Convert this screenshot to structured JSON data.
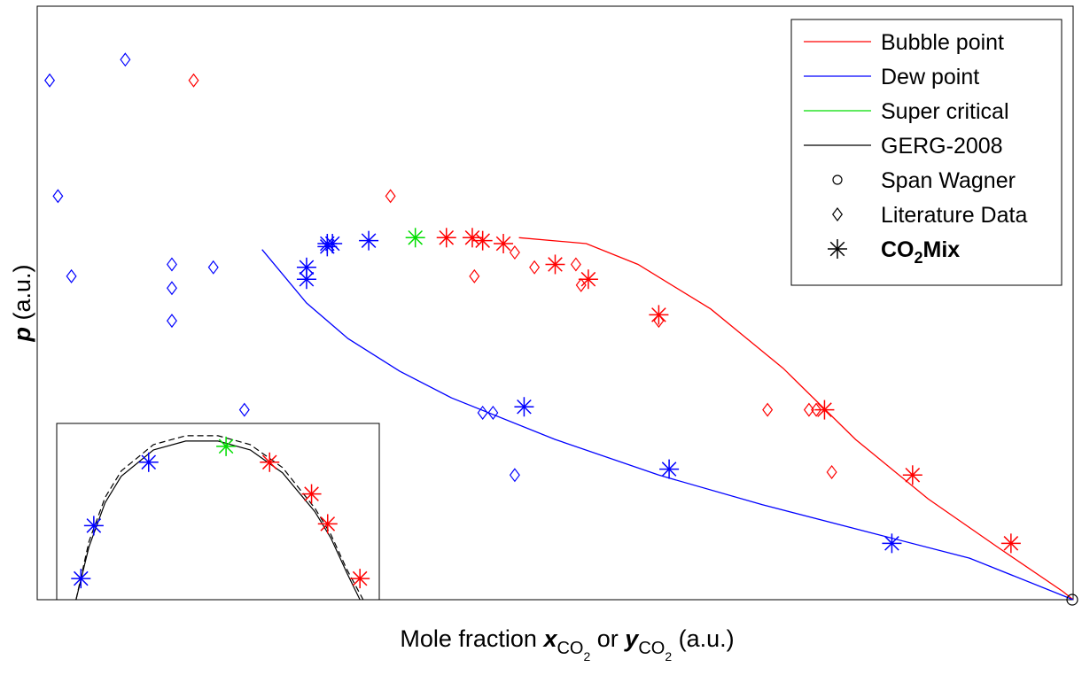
{
  "chart_data": {
    "type": "scatter",
    "title": "",
    "xlabel": {
      "prefix": "Mole fraction ",
      "x_symbol": "x",
      "or_text": " or ",
      "y_symbol": "y",
      "subscript": "CO",
      "sub_sub": "2",
      "unit": " (a.u.)"
    },
    "ylabel": {
      "symbol": "p",
      "unit": " (a.u.)"
    },
    "xlim": [
      0,
      1
    ],
    "ylim": [
      0,
      1
    ],
    "axis_ticks": "none",
    "grid": false,
    "legend": {
      "placement": "top-right",
      "entries": [
        {
          "label": "Bubble point",
          "marker": "line",
          "color": "#ff0000"
        },
        {
          "label": "Dew point",
          "marker": "line",
          "color": "#0000ff"
        },
        {
          "label": "Super critical",
          "marker": "line",
          "color": "#00dd00"
        },
        {
          "label": "GERG-2008",
          "marker": "line",
          "color": "#000000"
        },
        {
          "label": "Span Wagner",
          "marker": "circle",
          "color": "#000000"
        },
        {
          "label": "Literature Data",
          "marker": "diamond",
          "color": "#000000"
        },
        {
          "label": "CO",
          "label_sub": "2",
          "label_suffix": "Mix",
          "marker": "star",
          "color": "#000000",
          "bold": true
        }
      ]
    },
    "colors": {
      "bubble": "#ff0000",
      "dew": "#0000ff",
      "super": "#00dd00",
      "gerg": "#000000"
    },
    "series": [
      {
        "name": "Bubble point",
        "kind": "line",
        "color": "#ff0000",
        "x": [
          0.465,
          0.53,
          0.58,
          0.65,
          0.72,
          0.79,
          0.86,
          0.93,
          0.99,
          1.0
        ],
        "y": [
          0.61,
          0.6,
          0.565,
          0.49,
          0.39,
          0.27,
          0.17,
          0.085,
          0.014,
          0.0
        ]
      },
      {
        "name": "Dew point",
        "kind": "line",
        "color": "#0000ff",
        "x": [
          0.217,
          0.26,
          0.3,
          0.35,
          0.4,
          0.5,
          0.6,
          0.7,
          0.8,
          0.9,
          1.0
        ],
        "y": [
          0.59,
          0.5,
          0.44,
          0.385,
          0.34,
          0.27,
          0.21,
          0.16,
          0.115,
          0.07,
          0.0
        ]
      },
      {
        "name": "CO2Mix dew",
        "kind": "star",
        "color": "#0000ff",
        "x": [
          0.26,
          0.26,
          0.28,
          0.28,
          0.285,
          0.32,
          0.47,
          0.61,
          0.825
        ],
        "y": [
          0.54,
          0.56,
          0.595,
          0.6,
          0.6,
          0.605,
          0.325,
          0.22,
          0.095
        ]
      },
      {
        "name": "CO2Mix super critical",
        "kind": "star",
        "color": "#00dd00",
        "x": [
          0.365
        ],
        "y": [
          0.61
        ]
      },
      {
        "name": "CO2Mix bubble",
        "kind": "star",
        "color": "#ff0000",
        "x": [
          0.395,
          0.42,
          0.43,
          0.45,
          0.5,
          0.532,
          0.6,
          0.76,
          0.845,
          0.94
        ],
        "y": [
          0.61,
          0.61,
          0.605,
          0.6,
          0.565,
          0.54,
          0.48,
          0.32,
          0.21,
          0.095
        ]
      },
      {
        "name": "Literature dew",
        "kind": "diamond",
        "color": "#0000ff",
        "x": [
          0.012,
          0.085,
          0.02,
          0.033,
          0.13,
          0.13,
          0.13,
          0.17,
          0.2,
          0.43,
          0.44,
          0.461
        ],
        "y": [
          0.875,
          0.91,
          0.68,
          0.545,
          0.565,
          0.525,
          0.47,
          0.56,
          0.32,
          0.315,
          0.315,
          0.21
        ]
      },
      {
        "name": "Literature bubble",
        "kind": "diamond",
        "color": "#ff0000",
        "x": [
          0.151,
          0.341,
          0.422,
          0.461,
          0.48,
          0.52,
          0.525,
          0.6,
          0.705,
          0.745,
          0.752,
          0.767
        ],
        "y": [
          0.875,
          0.68,
          0.545,
          0.585,
          0.56,
          0.565,
          0.53,
          0.47,
          0.32,
          0.32,
          0.32,
          0.215
        ]
      },
      {
        "name": "Span Wagner",
        "kind": "circle",
        "color": "#000000",
        "x": [
          1.0
        ],
        "y": [
          0.0
        ]
      }
    ],
    "inset": {
      "placement": "bottom-left",
      "xlim": [
        0,
        1
      ],
      "ylim": [
        0,
        1
      ],
      "curves": [
        {
          "name": "GERG-2008",
          "style": "solid",
          "color": "#000000",
          "x": [
            0.06,
            0.1,
            0.15,
            0.2,
            0.3,
            0.4,
            0.5,
            0.6,
            0.7,
            0.8,
            0.85,
            0.9,
            0.94
          ],
          "y": [
            0.0,
            0.3,
            0.55,
            0.7,
            0.85,
            0.9,
            0.9,
            0.85,
            0.72,
            0.5,
            0.35,
            0.15,
            0.0
          ]
        },
        {
          "name": "GERG-2008 (dashed)",
          "style": "dashed",
          "color": "#000000",
          "x": [
            0.06,
            0.1,
            0.15,
            0.2,
            0.3,
            0.4,
            0.5,
            0.6,
            0.7,
            0.8,
            0.85,
            0.9,
            0.95
          ],
          "y": [
            0.0,
            0.33,
            0.58,
            0.73,
            0.88,
            0.93,
            0.93,
            0.88,
            0.75,
            0.52,
            0.37,
            0.17,
            0.0
          ]
        }
      ],
      "stars": [
        {
          "x": 0.075,
          "y": 0.12,
          "color": "#0000ff"
        },
        {
          "x": 0.115,
          "y": 0.42,
          "color": "#0000ff"
        },
        {
          "x": 0.285,
          "y": 0.78,
          "color": "#0000ff"
        },
        {
          "x": 0.525,
          "y": 0.87,
          "color": "#00dd00"
        },
        {
          "x": 0.66,
          "y": 0.78,
          "color": "#ff0000"
        },
        {
          "x": 0.79,
          "y": 0.6,
          "color": "#ff0000"
        },
        {
          "x": 0.84,
          "y": 0.43,
          "color": "#ff0000"
        },
        {
          "x": 0.94,
          "y": 0.12,
          "color": "#ff0000"
        }
      ]
    }
  }
}
